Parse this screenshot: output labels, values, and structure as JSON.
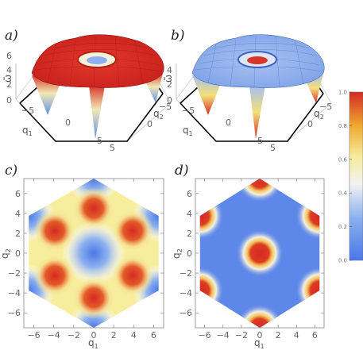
{
  "chart_data": [
    {
      "panel": "a)",
      "type": "surface",
      "xlabel": "q1",
      "ylabel": "q2",
      "zlabel": "ω̃",
      "x_ticks": [
        "-5",
        "0",
        "5"
      ],
      "y_ticks": [
        "-5",
        "0",
        "5"
      ],
      "z_ticks": [
        "0",
        "2",
        "4",
        "6"
      ],
      "colormap": "mostly high values (red), blue at hexagon corners"
    },
    {
      "panel": "b)",
      "type": "surface",
      "xlabel": "q1",
      "ylabel": "q2",
      "zlabel": "ω̃",
      "x_ticks": [
        "-5",
        "0",
        "5"
      ],
      "y_ticks": [
        "-5",
        "0",
        "5"
      ],
      "z_ticks": [
        "0",
        "2",
        "4"
      ],
      "colormap": "mostly low values (blue), red at hexagon corners"
    },
    {
      "panel": "c)",
      "type": "heatmap",
      "xlabel": "q1",
      "ylabel": "q2",
      "xlim": [
        -7,
        7
      ],
      "ylim": [
        -7.5,
        7.5
      ],
      "x_ticks": [
        "-6",
        "-4",
        "-2",
        "0",
        "2",
        "4",
        "6"
      ],
      "y_ticks": [
        "-6",
        "-4",
        "-2",
        "0",
        "2",
        "4",
        "6"
      ],
      "region": "hexagon",
      "hot_spots": [
        [
          0,
          4.5
        ],
        [
          3.9,
          2.25
        ],
        [
          3.9,
          -2.25
        ],
        [
          0,
          -4.5
        ],
        [
          -3.9,
          -2.25
        ],
        [
          -3.9,
          2.25
        ]
      ],
      "cold_spots": [
        [
          0,
          0
        ],
        [
          0,
          7.5
        ],
        [
          6.5,
          3.75
        ],
        [
          6.5,
          -3.75
        ],
        [
          0,
          -7.5
        ],
        [
          -6.5,
          -3.75
        ],
        [
          -6.5,
          3.75
        ]
      ]
    },
    {
      "panel": "d)",
      "type": "heatmap",
      "xlabel": "q1",
      "ylabel": "q2",
      "xlim": [
        -7,
        7
      ],
      "ylim": [
        -7.5,
        7.5
      ],
      "x_ticks": [
        "-6",
        "-4",
        "-2",
        "0",
        "2",
        "4",
        "6"
      ],
      "y_ticks": [
        "-6",
        "-4",
        "-2",
        "0",
        "2",
        "4",
        "6"
      ],
      "region": "hexagon",
      "hot_spots": [
        [
          0,
          0
        ],
        [
          0,
          7.5
        ],
        [
          6.5,
          3.75
        ],
        [
          6.5,
          -3.75
        ],
        [
          0,
          -7.5
        ],
        [
          -6.5,
          -3.75
        ],
        [
          -6.5,
          3.75
        ]
      ]
    },
    {
      "type": "colorbar",
      "ticks": [
        "0.0",
        "0.2",
        "0.4",
        "0.6",
        "0.8",
        "1.0"
      ],
      "range": [
        0,
        1
      ]
    }
  ],
  "labels": {
    "a": "a)",
    "b": "b)",
    "c": "c)",
    "d": "d)",
    "q1": "q",
    "q2": "q",
    "sub1": "1",
    "sub2": "2",
    "omega": "ω̃"
  }
}
